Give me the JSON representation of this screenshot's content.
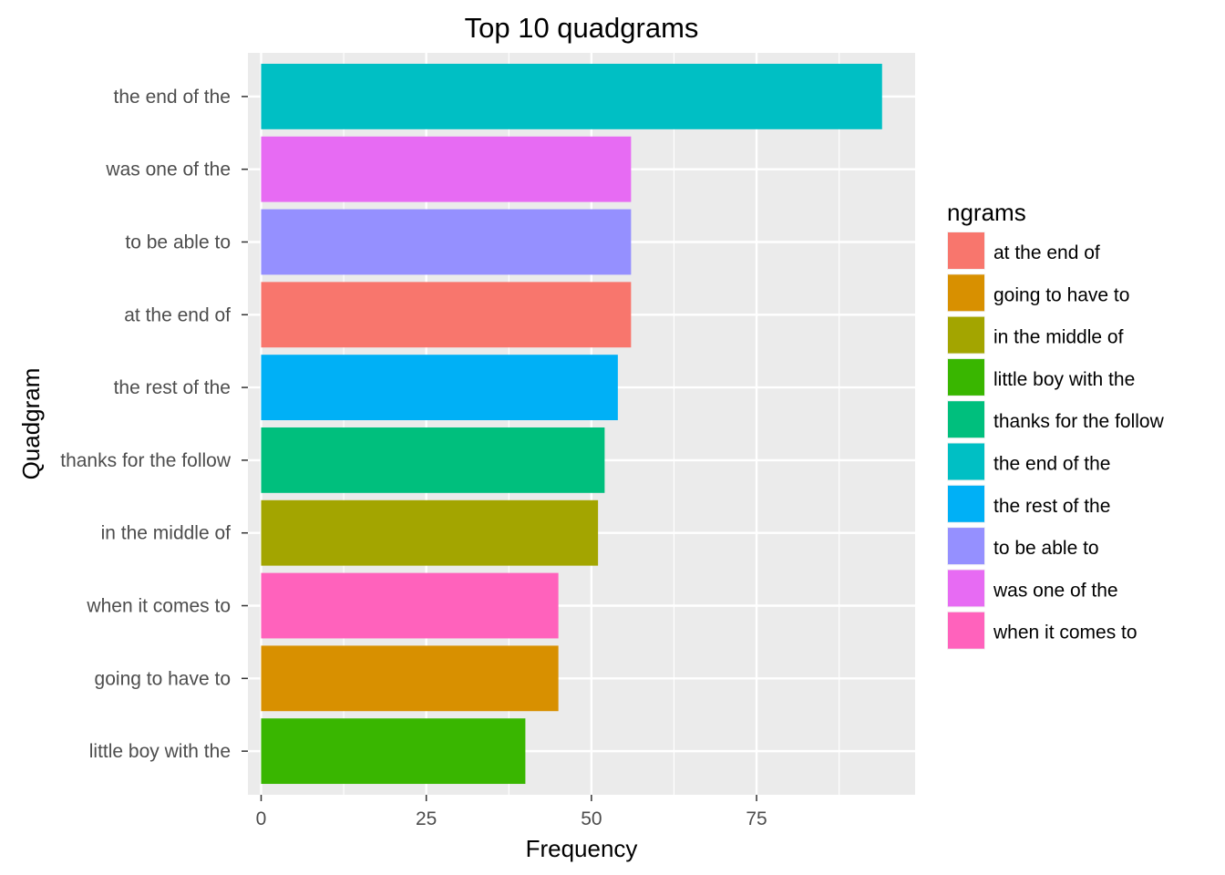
{
  "chart_data": {
    "type": "bar",
    "orientation": "horizontal",
    "title": "Top 10 quadgrams",
    "xlabel": "Frequency",
    "ylabel": "Quadgram",
    "xlim": [
      -2,
      99
    ],
    "xticks": [
      0,
      25,
      50,
      75
    ],
    "grid": true,
    "legend_title": "ngrams",
    "legend_placement": "right",
    "categories": [
      "the end of the",
      "was one of the",
      "to be able to",
      "at the end of",
      "the rest of the",
      "thanks for the follow",
      "in the middle of",
      "when it comes to",
      "going to have to",
      "little boy with the"
    ],
    "values": [
      94,
      56,
      56,
      56,
      54,
      52,
      51,
      45,
      45,
      40
    ],
    "legend": [
      {
        "label": "at the end of",
        "color": "#F8766D"
      },
      {
        "label": "going to have to",
        "color": "#D89000"
      },
      {
        "label": "in the middle of",
        "color": "#A3A500"
      },
      {
        "label": "little boy with the",
        "color": "#39B600"
      },
      {
        "label": "thanks for the follow",
        "color": "#00BF7D"
      },
      {
        "label": "the end of the",
        "color": "#00BFC4"
      },
      {
        "label": "the rest of the",
        "color": "#00B0F6"
      },
      {
        "label": "to be able to",
        "color": "#9590FF"
      },
      {
        "label": "was one of the",
        "color": "#E76BF3"
      },
      {
        "label": "when it comes to",
        "color": "#FF62BC"
      }
    ],
    "panel_background": "#EBEBEB",
    "grid_color": "#FFFFFF"
  }
}
